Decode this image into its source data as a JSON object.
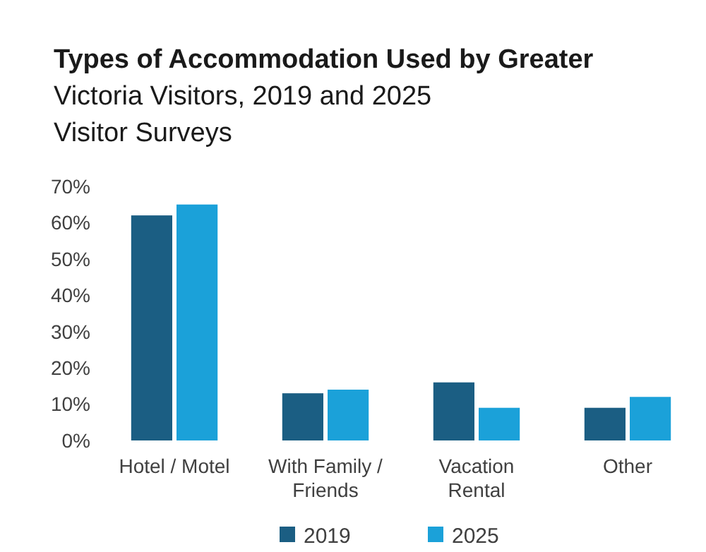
{
  "chart_data": {
    "type": "bar",
    "title": "Types of Accommodation Used by Greater Victoria Visitors, 2019 and 2025 Visitor Surveys",
    "categories": [
      "Hotel / Motel",
      "With Family / Friends",
      "Vacation Rental",
      "Other"
    ],
    "series": [
      {
        "name": "2019",
        "color": "#1b5e83",
        "values": [
          62,
          13,
          16,
          9
        ]
      },
      {
        "name": "2025",
        "color": "#1ba1d9",
        "values": [
          65,
          14,
          9,
          12
        ]
      }
    ],
    "ylim": [
      0,
      70
    ],
    "yticks": [
      {
        "value": 0,
        "label": "0%"
      },
      {
        "value": 10,
        "label": "10%"
      },
      {
        "value": 20,
        "label": "20%"
      },
      {
        "value": 30,
        "label": "30%"
      },
      {
        "value": 40,
        "label": "40%"
      },
      {
        "value": 50,
        "label": "50%"
      },
      {
        "value": 60,
        "label": "60%"
      },
      {
        "value": 70,
        "label": "70%"
      }
    ],
    "grid": false,
    "legend": "bottom"
  }
}
